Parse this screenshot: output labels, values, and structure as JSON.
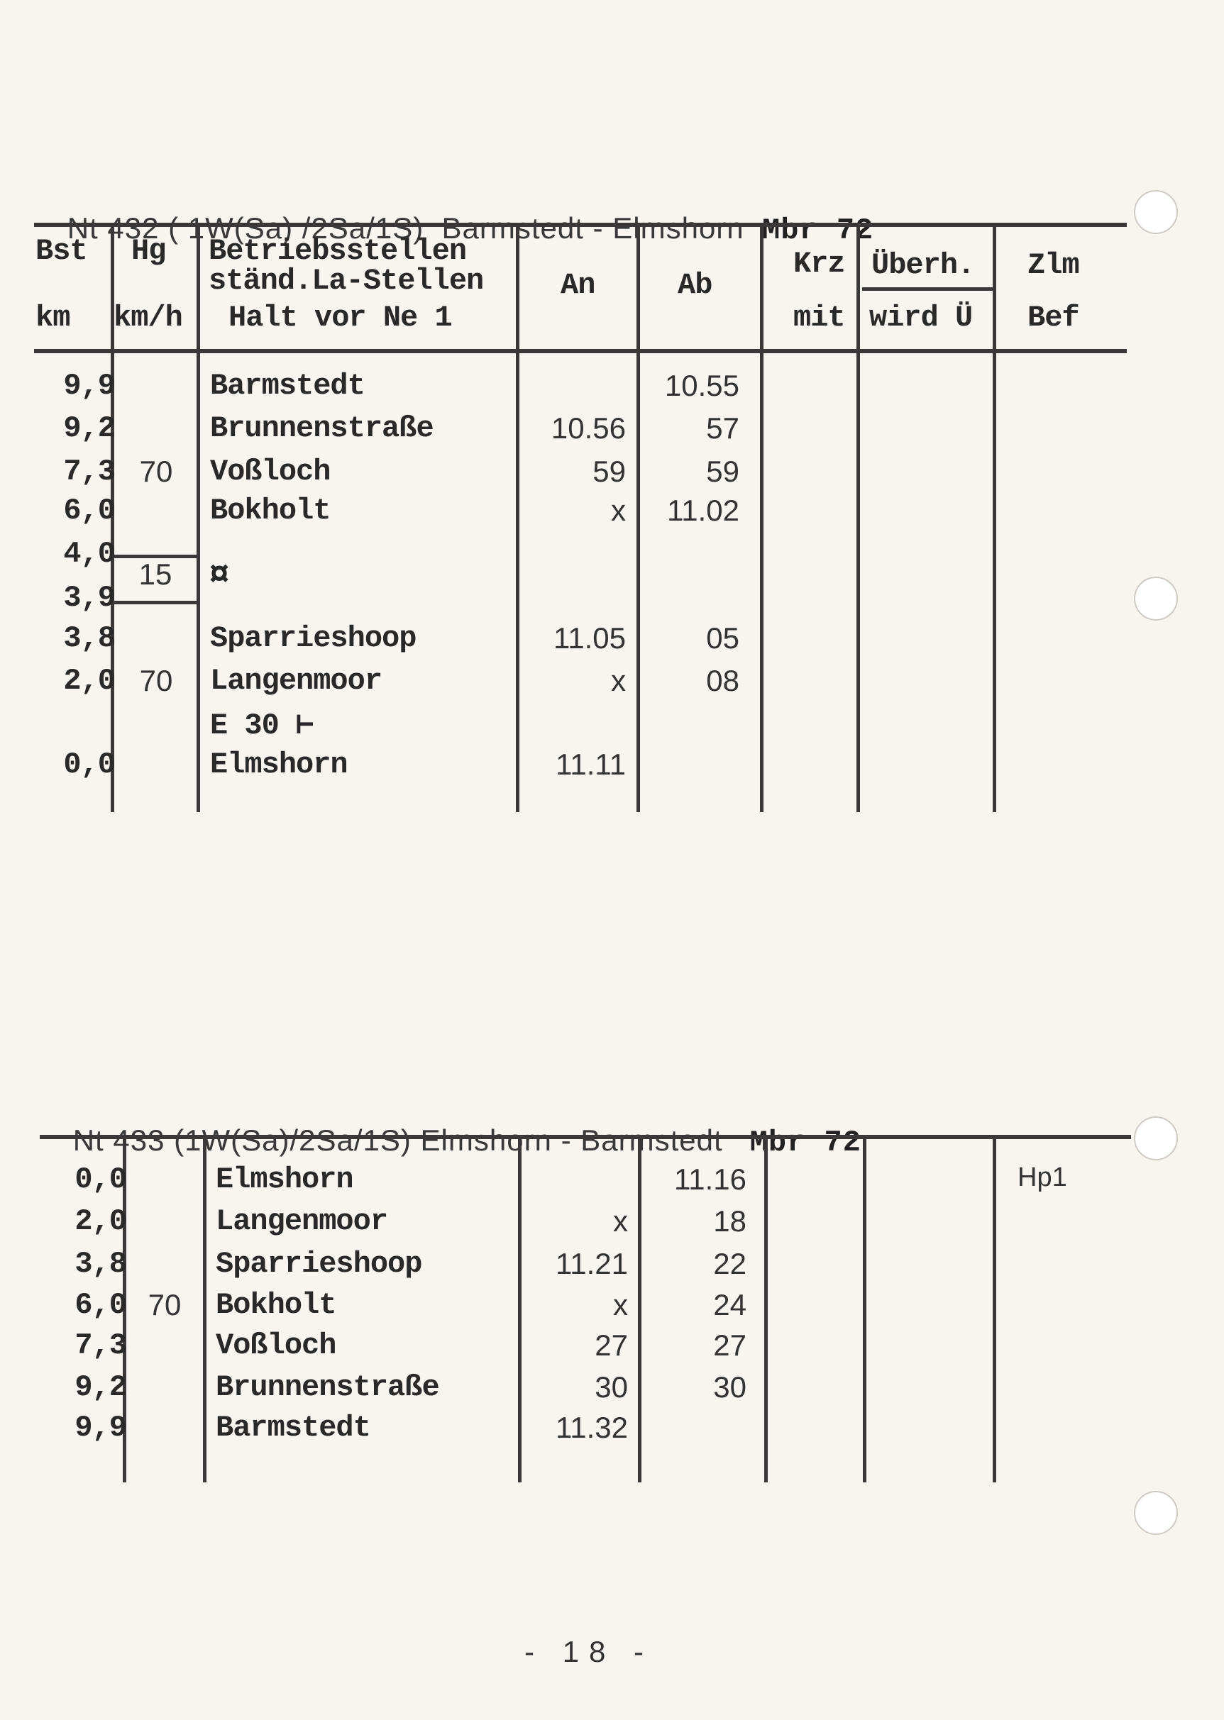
{
  "table1": {
    "title": "Nt 432 ( 1W(Sa) /2Sa/1S)  Barmstedt - Elmshorn",
    "title_bold": "Mbr 72",
    "header": {
      "bst": "Bst",
      "km": "km",
      "hg": "Hg",
      "kmh": "km/h",
      "betr1": "Betriebsstellen",
      "betr2": "ständ.La-Stellen",
      "betr3": "Halt vor Ne 1",
      "an": "An",
      "ab": "Ab",
      "krz": "Krz",
      "mit": "mit",
      "ueberh": "Überh.",
      "wird": "wird Ü",
      "zlm": "Zlm",
      "bef": "Bef"
    },
    "rows": [
      {
        "km": "9,9",
        "hg": "",
        "name": "Barmstedt",
        "an": "",
        "ab": "10.55"
      },
      {
        "km": "9,2",
        "hg": "",
        "name": "Brunnenstraße",
        "an": "10.56",
        "ab": "57"
      },
      {
        "km": "7,3",
        "hg": "70",
        "name": "Voßloch",
        "an": "59",
        "ab": "59"
      },
      {
        "km": "6,0",
        "hg": "",
        "name": "Bokholt",
        "an": "x",
        "ab": "11.02"
      },
      {
        "km": "4,0",
        "hg": "",
        "name": "",
        "an": "",
        "ab": ""
      },
      {
        "km": "3,9",
        "hg": "",
        "name": "",
        "an": "",
        "ab": ""
      },
      {
        "km": "3,8",
        "hg": "",
        "name": "Sparrieshoop",
        "an": "11.05",
        "ab": "05"
      },
      {
        "km": "2,0",
        "hg": "70",
        "name": "Langenmoor",
        "an": "x",
        "ab": "08"
      },
      {
        "km": "",
        "hg": "",
        "name": "E 30 ⊢",
        "an": "",
        "ab": ""
      },
      {
        "km": "0,0",
        "hg": "",
        "name": "Elmshorn",
        "an": "11.11",
        "ab": ""
      }
    ],
    "speed_restriction": {
      "hg": "15",
      "symbol": "¤"
    }
  },
  "table2": {
    "title": "Nt 433 (1W(Sa)/2Sa/1S) Elmshorn - Barmstedt",
    "title_bold": "Mbr 72",
    "rows": [
      {
        "km": "0,0",
        "hg": "",
        "name": "Elmshorn",
        "an": "",
        "ab": "11.16",
        "zlm": "Hp1"
      },
      {
        "km": "2,0",
        "hg": "",
        "name": "Langenmoor",
        "an": "x",
        "ab": "18",
        "zlm": ""
      },
      {
        "km": "3,8",
        "hg": "",
        "name": "Sparrieshoop",
        "an": "11.21",
        "ab": "22",
        "zlm": ""
      },
      {
        "km": "6,0",
        "hg": "70",
        "name": "Bokholt",
        "an": "x",
        "ab": "24",
        "zlm": ""
      },
      {
        "km": "7,3",
        "hg": "",
        "name": "Voßloch",
        "an": "27",
        "ab": "27",
        "zlm": ""
      },
      {
        "km": "9,2",
        "hg": "",
        "name": "Brunnenstraße",
        "an": "30",
        "ab": "30",
        "zlm": ""
      },
      {
        "km": "9,9",
        "hg": "",
        "name": "Barmstedt",
        "an": "11.32",
        "ab": "",
        "zlm": ""
      }
    ]
  },
  "page_number": "- 18 -"
}
